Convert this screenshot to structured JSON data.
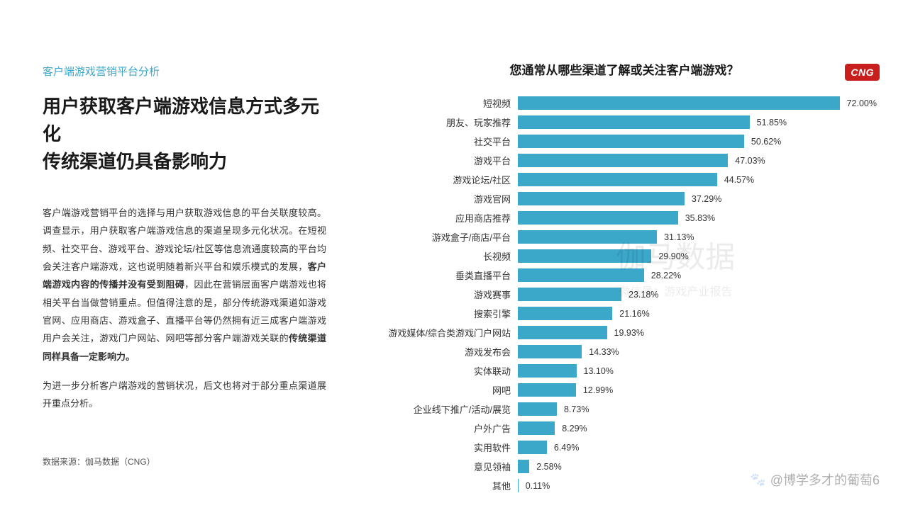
{
  "left": {
    "section_label": "客户端游戏营销平台分析",
    "title_line1": "用户获取客户端游戏信息方式多元化",
    "title_line2": "传统渠道仍具备影响力",
    "para1_a": "客户端游戏营销平台的选择与用户获取游戏信息的平台关联度较高。调查显示，用户获取客户端游戏信息的渠道呈现多元化状况。在短视频、社交平台、游戏平台、游戏论坛/社区等信息流通度较高的平台均会关注客户端游戏，这也说明随着新兴平台和娱乐模式的发展，",
    "para1_bold1": "客户端游戏内容的传播并没有受到阻碍",
    "para1_b": "，因此在营销层面客户端游戏也将相关平台当做营销重点。但值得注意的是，部分传统游戏渠道如游戏官网、应用商店、游戏盒子、直播平台等仍然拥有近三成客户端游戏用户会关注，游戏门户网站、网吧等部分客户端游戏关联的",
    "para1_bold2": "传统渠道同样具备一定影响力。",
    "para2": "为进一步分析客户端游戏的营销状况，后文也将对于部分重点渠道展开重点分析。",
    "source": "数据来源：伽马数据（CNG）"
  },
  "chart": {
    "type": "horizontal-bar",
    "title": "您通常从哪些渠道了解或关注客户端游戏？",
    "logo_text": "CNG",
    "max_value": 72.0,
    "bar_color": "#3ba7c9",
    "bar_width_scale": 6.3,
    "value_suffix": "%",
    "text_color": "#333333",
    "background": "#ffffff",
    "label_fontsize": 13,
    "value_fontsize": 12.5,
    "title_fontsize": 17,
    "rows": [
      {
        "label": "短视频",
        "value": 72.0,
        "valueText": "72.00%"
      },
      {
        "label": "朋友、玩家推荐",
        "value": 51.85,
        "valueText": "51.85%"
      },
      {
        "label": "社交平台",
        "value": 50.62,
        "valueText": "50.62%"
      },
      {
        "label": "游戏平台",
        "value": 47.03,
        "valueText": "47.03%"
      },
      {
        "label": "游戏论坛/社区",
        "value": 44.57,
        "valueText": "44.57%"
      },
      {
        "label": "游戏官网",
        "value": 37.29,
        "valueText": "37.29%"
      },
      {
        "label": "应用商店推荐",
        "value": 35.83,
        "valueText": "35.83%"
      },
      {
        "label": "游戏盒子/商店/平台",
        "value": 31.13,
        "valueText": "31.13%"
      },
      {
        "label": "长视频",
        "value": 29.9,
        "valueText": "29.90%"
      },
      {
        "label": "垂类直播平台",
        "value": 28.22,
        "valueText": "28.22%"
      },
      {
        "label": "游戏赛事",
        "value": 23.18,
        "valueText": "23.18%"
      },
      {
        "label": "搜索引擎",
        "value": 21.16,
        "valueText": "21.16%"
      },
      {
        "label": "游戏媒体/综合类游戏门户网站",
        "value": 19.93,
        "valueText": "19.93%"
      },
      {
        "label": "游戏发布会",
        "value": 14.33,
        "valueText": "14.33%"
      },
      {
        "label": "实体联动",
        "value": 13.1,
        "valueText": "13.10%"
      },
      {
        "label": "网吧",
        "value": 12.99,
        "valueText": "12.99%"
      },
      {
        "label": "企业线下推广/活动/展览",
        "value": 8.73,
        "valueText": "8.73%"
      },
      {
        "label": "户外广告",
        "value": 8.29,
        "valueText": "8.29%"
      },
      {
        "label": "实用软件",
        "value": 6.49,
        "valueText": "6.49%"
      },
      {
        "label": "意见领袖",
        "value": 2.58,
        "valueText": "2.58%"
      },
      {
        "label": "其他",
        "value": 0.11,
        "valueText": "0.11%"
      }
    ]
  },
  "watermark": {
    "center": "伽马数据",
    "sub": "微信号：游戏产业报告",
    "bottom": "@博学多才的葡萄6"
  }
}
